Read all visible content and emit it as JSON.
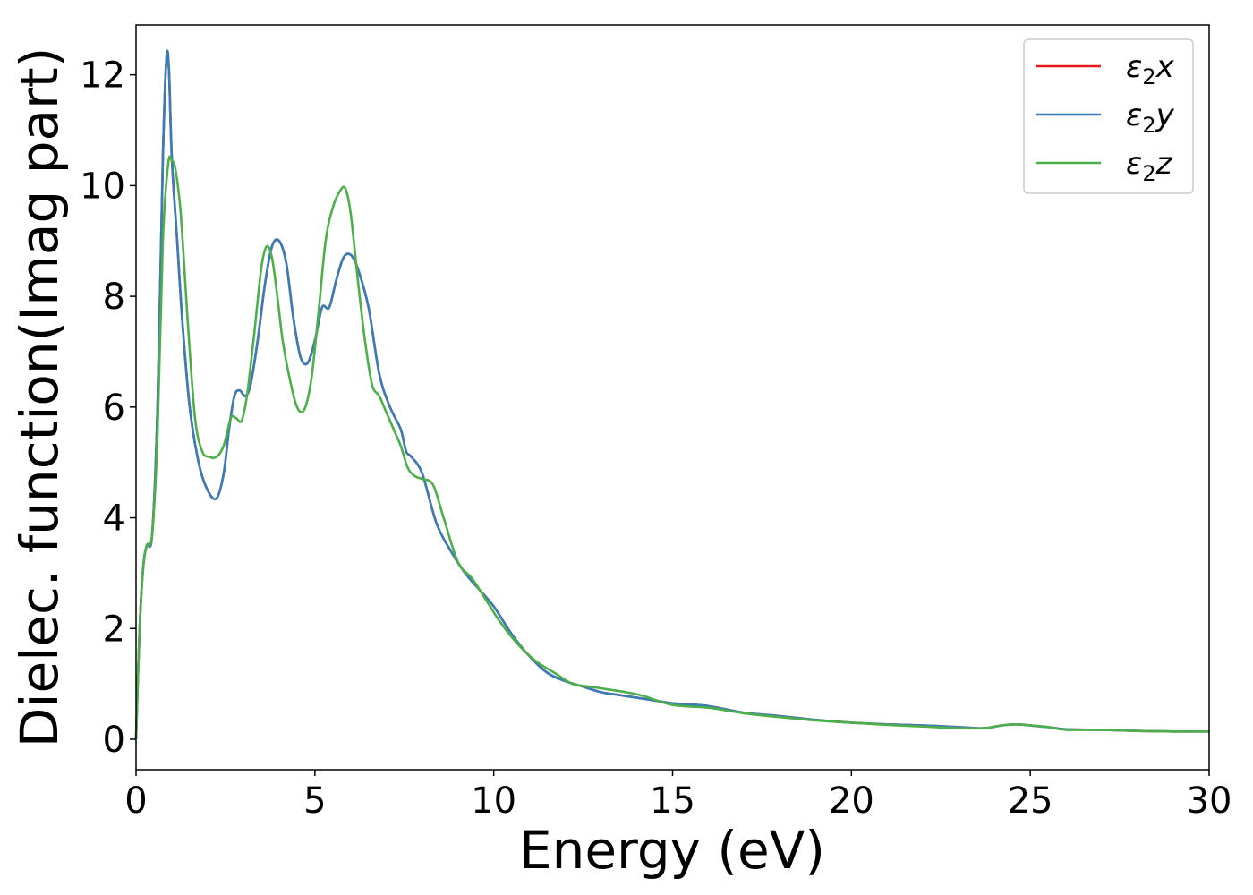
{
  "chart_data": {
    "type": "line",
    "title": "",
    "xlabel": "Energy (eV)",
    "ylabel": "Dielec. function(Imag part)",
    "xlim": [
      0,
      30
    ],
    "ylim": [
      -0.55,
      12.9
    ],
    "xticks": [
      0,
      5,
      10,
      15,
      20,
      25,
      30
    ],
    "yticks": [
      0,
      2,
      4,
      6,
      8,
      10,
      12
    ],
    "xtick_labels": [
      "0",
      "5",
      "10",
      "15",
      "20",
      "25",
      "30"
    ],
    "ytick_labels": [
      "0",
      "2",
      "4",
      "6",
      "8",
      "10",
      "12"
    ],
    "grid": false,
    "legend_position": "top-right",
    "series": [
      {
        "name": "ε2x",
        "color": "#e41a1c",
        "x": [
          0,
          0.1,
          0.2,
          0.3,
          0.45,
          0.6,
          0.75,
          0.85,
          0.92,
          1.0,
          1.15,
          1.3,
          1.5,
          1.75,
          2.0,
          2.25,
          2.45,
          2.6,
          2.75,
          2.9,
          3.05,
          3.2,
          3.4,
          3.6,
          3.8,
          4.0,
          4.2,
          4.4,
          4.6,
          4.8,
          5.0,
          5.2,
          5.4,
          5.6,
          5.8,
          6.0,
          6.2,
          6.5,
          6.8,
          7.1,
          7.4,
          7.55,
          7.7,
          8.0,
          8.4,
          8.8,
          9.2,
          9.6,
          10.0,
          10.5,
          11.0,
          11.5,
          12.0,
          12.5,
          13.0,
          13.5,
          14.0,
          14.5,
          15.0,
          16.0,
          17.0,
          18.0,
          19.0,
          20.0,
          21.0,
          22.0,
          23.0,
          23.7,
          24.2,
          24.6,
          25.0,
          25.5,
          26.0,
          27.0,
          28.0,
          29.0,
          30.0
        ],
        "y": [
          0.0,
          2.0,
          3.1,
          3.5,
          3.7,
          6.0,
          10.5,
          12.3,
          12.1,
          10.5,
          9.0,
          7.5,
          6.0,
          5.0,
          4.5,
          4.35,
          4.8,
          5.6,
          6.2,
          6.3,
          6.2,
          6.4,
          7.2,
          8.2,
          8.9,
          9.0,
          8.6,
          7.6,
          6.9,
          6.8,
          7.2,
          7.8,
          7.8,
          8.3,
          8.7,
          8.75,
          8.5,
          7.8,
          6.6,
          6.0,
          5.6,
          5.2,
          5.1,
          4.8,
          3.9,
          3.4,
          3.0,
          2.7,
          2.4,
          1.9,
          1.5,
          1.2,
          1.05,
          0.95,
          0.85,
          0.8,
          0.75,
          0.7,
          0.65,
          0.6,
          0.48,
          0.42,
          0.35,
          0.3,
          0.27,
          0.25,
          0.22,
          0.2,
          0.25,
          0.27,
          0.25,
          0.22,
          0.18,
          0.17,
          0.15,
          0.14,
          0.14
        ]
      },
      {
        "name": "ε2y",
        "color": "#377eb8",
        "x": [
          0,
          0.1,
          0.2,
          0.3,
          0.45,
          0.6,
          0.75,
          0.85,
          0.92,
          1.0,
          1.15,
          1.3,
          1.5,
          1.75,
          2.0,
          2.25,
          2.45,
          2.6,
          2.75,
          2.9,
          3.05,
          3.2,
          3.4,
          3.6,
          3.8,
          4.0,
          4.2,
          4.4,
          4.6,
          4.8,
          5.0,
          5.2,
          5.4,
          5.6,
          5.8,
          6.0,
          6.2,
          6.5,
          6.8,
          7.1,
          7.4,
          7.55,
          7.7,
          8.0,
          8.4,
          8.8,
          9.2,
          9.6,
          10.0,
          10.5,
          11.0,
          11.5,
          12.0,
          12.5,
          13.0,
          13.5,
          14.0,
          14.5,
          15.0,
          16.0,
          17.0,
          18.0,
          19.0,
          20.0,
          21.0,
          22.0,
          23.0,
          23.7,
          24.2,
          24.6,
          25.0,
          25.5,
          26.0,
          27.0,
          28.0,
          29.0,
          30.0
        ],
        "y": [
          0.0,
          2.0,
          3.1,
          3.5,
          3.7,
          6.0,
          10.5,
          12.3,
          12.1,
          10.5,
          9.0,
          7.5,
          6.0,
          5.0,
          4.5,
          4.35,
          4.8,
          5.6,
          6.2,
          6.3,
          6.2,
          6.4,
          7.2,
          8.2,
          8.9,
          9.0,
          8.6,
          7.6,
          6.9,
          6.8,
          7.2,
          7.8,
          7.8,
          8.3,
          8.7,
          8.75,
          8.5,
          7.8,
          6.6,
          6.0,
          5.6,
          5.2,
          5.1,
          4.8,
          3.9,
          3.4,
          3.0,
          2.7,
          2.4,
          1.9,
          1.5,
          1.2,
          1.05,
          0.95,
          0.85,
          0.8,
          0.75,
          0.7,
          0.65,
          0.6,
          0.48,
          0.42,
          0.35,
          0.3,
          0.27,
          0.25,
          0.22,
          0.2,
          0.25,
          0.27,
          0.25,
          0.22,
          0.18,
          0.17,
          0.15,
          0.14,
          0.14
        ]
      },
      {
        "name": "ε2z",
        "color": "#4daf4a",
        "x": [
          0,
          0.1,
          0.2,
          0.3,
          0.45,
          0.6,
          0.75,
          0.9,
          1.0,
          1.1,
          1.25,
          1.45,
          1.65,
          1.85,
          2.05,
          2.25,
          2.45,
          2.65,
          2.8,
          2.95,
          3.1,
          3.3,
          3.5,
          3.65,
          3.8,
          3.95,
          4.1,
          4.3,
          4.5,
          4.7,
          4.9,
          5.1,
          5.3,
          5.5,
          5.7,
          5.85,
          6.0,
          6.2,
          6.4,
          6.6,
          6.8,
          7.0,
          7.2,
          7.4,
          7.6,
          7.8,
          8.0,
          8.3,
          8.6,
          9.0,
          9.4,
          9.8,
          10.2,
          10.7,
          11.2,
          11.7,
          12.2,
          12.7,
          13.2,
          13.7,
          14.2,
          15.0,
          16.0,
          17.0,
          18.0,
          19.0,
          20.0,
          21.0,
          22.0,
          23.0,
          23.7,
          24.2,
          24.6,
          25.0,
          25.5,
          26.0,
          27.0,
          28.0,
          29.0,
          30.0
        ],
        "y": [
          0.0,
          2.0,
          3.1,
          3.5,
          3.7,
          5.5,
          9.0,
          10.4,
          10.45,
          10.3,
          9.5,
          7.5,
          5.8,
          5.2,
          5.1,
          5.1,
          5.3,
          5.8,
          5.8,
          5.75,
          6.2,
          7.3,
          8.5,
          8.9,
          8.7,
          8.0,
          7.2,
          6.5,
          6.0,
          5.95,
          6.5,
          7.7,
          9.0,
          9.6,
          9.9,
          9.95,
          9.5,
          8.3,
          7.2,
          6.4,
          6.2,
          5.9,
          5.6,
          5.3,
          4.9,
          4.75,
          4.7,
          4.6,
          4.0,
          3.2,
          2.9,
          2.5,
          2.1,
          1.7,
          1.4,
          1.2,
          1.0,
          0.95,
          0.9,
          0.85,
          0.78,
          0.62,
          0.57,
          0.47,
          0.4,
          0.34,
          0.3,
          0.26,
          0.23,
          0.2,
          0.2,
          0.25,
          0.27,
          0.25,
          0.22,
          0.17,
          0.17,
          0.15,
          0.14,
          0.14
        ]
      }
    ]
  }
}
